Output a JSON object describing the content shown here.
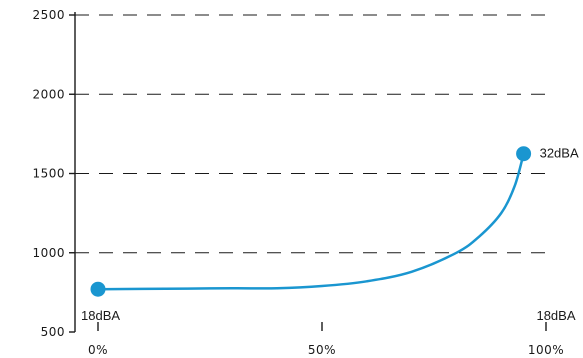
{
  "chart_data": {
    "type": "line",
    "title": "",
    "xlabel": "",
    "ylabel": "",
    "xlim": [
      0,
      100
    ],
    "ylim": [
      500,
      2500
    ],
    "x_ticks": [
      {
        "value": 0,
        "label": "0%"
      },
      {
        "value": 50,
        "label": "50%"
      },
      {
        "value": 100,
        "label": "100%"
      }
    ],
    "y_ticks": [
      {
        "value": 500,
        "label": "500"
      },
      {
        "value": 1000,
        "label": "1000"
      },
      {
        "value": 1500,
        "label": "1500"
      },
      {
        "value": 2000,
        "label": "2000"
      },
      {
        "value": 2500,
        "label": "2500"
      }
    ],
    "grid": {
      "horizontal": "dashed",
      "vertical": false
    },
    "series": [
      {
        "color": "#1a96d0",
        "x": [
          0,
          10,
          20,
          30,
          40,
          50,
          60,
          70,
          80,
          85,
          90,
          93,
          95
        ],
        "values": [
          770,
          772,
          774,
          776,
          776,
          790,
          820,
          880,
          1000,
          1100,
          1250,
          1420,
          1625
        ]
      }
    ],
    "endpoints": [
      {
        "x": 0,
        "y": 770
      },
      {
        "x": 95,
        "y": 1625
      }
    ],
    "annotations": [
      {
        "text": "18dBA",
        "x": 0,
        "y": 500,
        "anchor": "start"
      },
      {
        "text": "32dBA",
        "x": 95,
        "y": 1625,
        "anchor": "start"
      },
      {
        "text": "18dBA",
        "x": 100,
        "y": 500,
        "anchor": "middle"
      }
    ]
  }
}
